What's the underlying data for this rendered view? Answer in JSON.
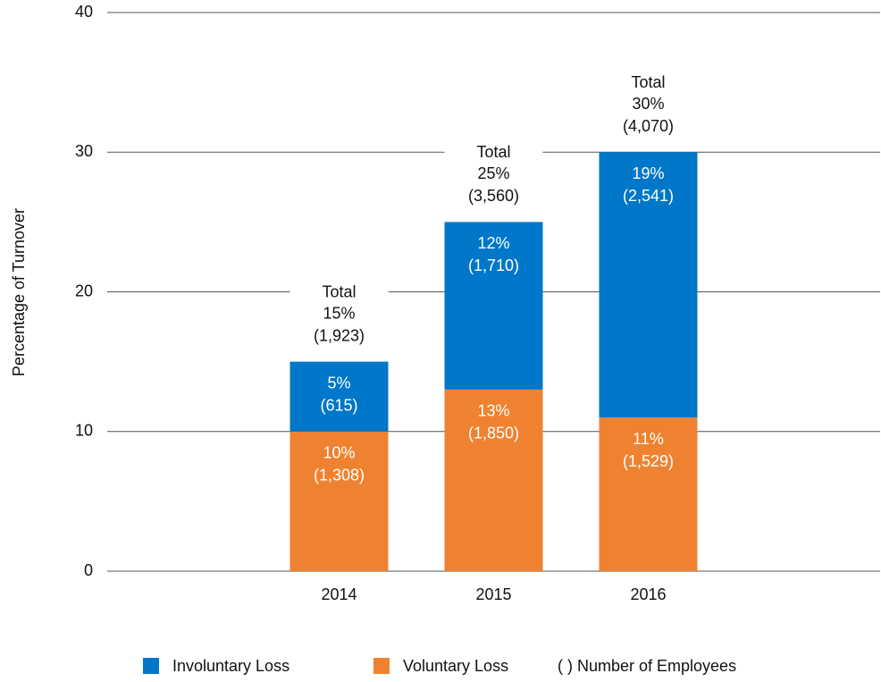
{
  "chart_data": {
    "type": "stacked_bar",
    "y_label": "Percentage of Turnover",
    "categories": [
      "2014",
      "2015",
      "2016"
    ],
    "series": [
      {
        "name": "Involuntary Loss",
        "color": "#0077c8",
        "values": [
          5,
          12,
          19
        ],
        "value_labels": [
          "5%",
          "12%",
          "19%"
        ],
        "employee_labels": [
          "(615)",
          "(1,710)",
          "(2,541)"
        ]
      },
      {
        "name": "Voluntary Loss",
        "color": "#ef8230",
        "values": [
          10,
          13,
          11
        ],
        "value_labels": [
          "10%",
          "13%",
          "11%"
        ],
        "employee_labels": [
          "(1,308)",
          "(1,850)",
          "(1,529)"
        ]
      }
    ],
    "totals": {
      "label": "Total",
      "values": [
        15,
        25,
        30
      ],
      "value_labels": [
        "15%",
        "25%",
        "30%"
      ],
      "employee_labels": [
        "(1,923)",
        "(3,560)",
        "(4,070)"
      ]
    },
    "legend_note": "( ) Number of Employees",
    "ylim": [
      0,
      40
    ],
    "yticks": [
      0,
      10,
      20,
      30,
      40
    ],
    "grid": true
  }
}
